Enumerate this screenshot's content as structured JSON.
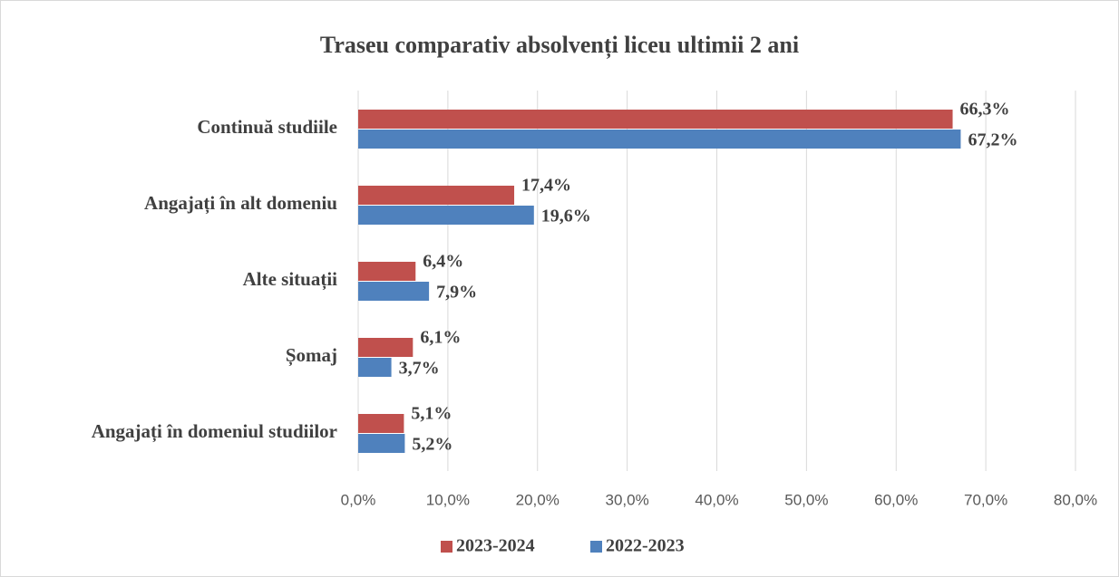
{
  "chart_data": {
    "type": "bar",
    "orientation": "horizontal",
    "title": "Traseu comparativ absolvenți liceu ultimii 2 ani",
    "categories": [
      "Continuă studiile",
      "Angajați în alt domeniu",
      "Alte situații",
      "Șomaj",
      "Angajați în domeniul studiilor"
    ],
    "series": [
      {
        "name": "2023-2024",
        "color": "#c0504d",
        "values": [
          66.3,
          17.4,
          6.4,
          6.1,
          5.1
        ],
        "value_labels": [
          "66,3%",
          "17,4%",
          "6,4%",
          "6,1%",
          "5,1%"
        ]
      },
      {
        "name": "2022-2023",
        "color": "#4f81bd",
        "values": [
          67.2,
          19.6,
          7.9,
          3.7,
          5.2
        ],
        "value_labels": [
          "67,2%",
          "19,6%",
          "7,9%",
          "3,7%",
          "5,2%"
        ]
      }
    ],
    "xlim": [
      0,
      80
    ],
    "xticks": [
      {
        "value": 0,
        "label": "0,0%"
      },
      {
        "value": 10,
        "label": "10,0%"
      },
      {
        "value": 20,
        "label": "20,0%"
      },
      {
        "value": 30,
        "label": "30,0%"
      },
      {
        "value": 40,
        "label": "40,0%"
      },
      {
        "value": 50,
        "label": "50,0%"
      },
      {
        "value": 60,
        "label": "60,0%"
      },
      {
        "value": 70,
        "label": "70,0%"
      },
      {
        "value": 80,
        "label": "80,0%"
      }
    ],
    "grid": true,
    "legend": "bottom"
  }
}
